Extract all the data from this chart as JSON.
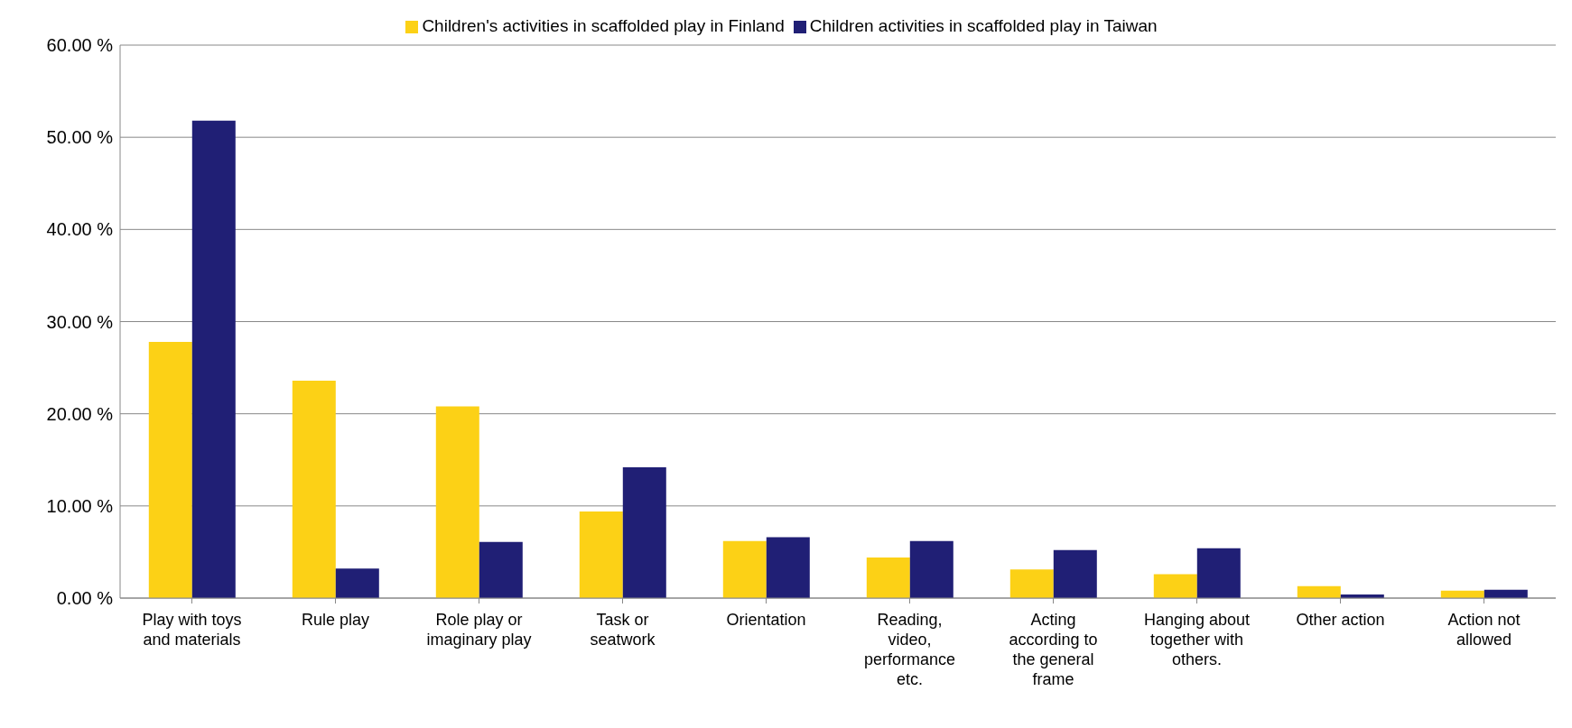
{
  "chart_data": {
    "type": "bar",
    "categories": [
      "Play with toys and materials",
      "Rule play",
      "Role play or imaginary play",
      "Task or seatwork",
      "Orientation",
      "Reading, video, performance etc.",
      "Acting according to the general frame",
      "Hanging about together with others.",
      "Other action",
      "Action not allowed"
    ],
    "series": [
      {
        "name": "Children's activities in scaffolded play in Finland",
        "color": "#fcd116",
        "values": [
          27.8,
          23.6,
          20.8,
          9.4,
          6.2,
          4.4,
          3.1,
          2.6,
          1.3,
          0.8
        ]
      },
      {
        "name": "Children activities in scaffolded play in Taiwan",
        "color": "#201f75",
        "values": [
          51.8,
          3.2,
          6.1,
          14.2,
          6.6,
          6.2,
          5.2,
          5.4,
          0.4,
          0.9
        ]
      }
    ],
    "ylim": [
      0,
      60
    ],
    "yticks": [
      {
        "value": 0,
        "label": "0.00 %"
      },
      {
        "value": 10,
        "label": "10.00 %"
      },
      {
        "value": 20,
        "label": "20.00 %"
      },
      {
        "value": 30,
        "label": "30.00 %"
      },
      {
        "value": 40,
        "label": "40.00 %"
      },
      {
        "value": 50,
        "label": "50.00 %"
      },
      {
        "value": 60,
        "label": "60.00 %"
      }
    ],
    "grid": "y",
    "legend": "top"
  }
}
